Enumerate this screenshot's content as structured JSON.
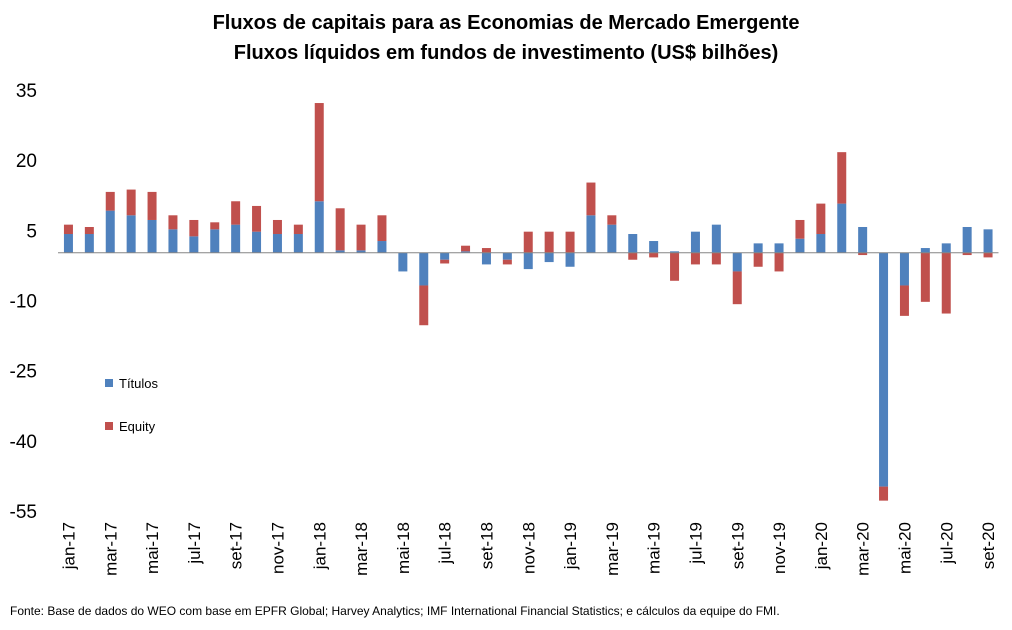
{
  "chart_data": {
    "type": "bar",
    "stacked": true,
    "title": "Fluxos de capitais para as Economias de Mercado Emergente",
    "subtitle": "Fluxos líquidos em fundos de investimento (US$ bilhões)",
    "ylim": [
      -55,
      35
    ],
    "yticks": [
      "35",
      "20",
      "5",
      "-10",
      "-25",
      "-40",
      "-55"
    ],
    "ytick_values": [
      35,
      20,
      5,
      -10,
      -25,
      -40,
      -55
    ],
    "xtick_labels": [
      "jan-17",
      "mar-17",
      "mai-17",
      "jul-17",
      "set-17",
      "nov-17",
      "jan-18",
      "mar-18",
      "mai-18",
      "jul-18",
      "set-18",
      "nov-18",
      "jan-19",
      "mar-19",
      "mai-19",
      "jul-19",
      "set-19",
      "nov-19",
      "jan-20",
      "mar-20",
      "mai-20",
      "jul-20",
      "set-20"
    ],
    "categories": [
      "jan-17",
      "fev-17",
      "mar-17",
      "abr-17",
      "mai-17",
      "jun-17",
      "jul-17",
      "ago-17",
      "set-17",
      "out-17",
      "nov-17",
      "dez-17",
      "jan-18",
      "fev-18",
      "mar-18",
      "abr-18",
      "mai-18",
      "jun-18",
      "jul-18",
      "ago-18",
      "set-18",
      "out-18",
      "nov-18",
      "dez-18",
      "jan-19",
      "fev-19",
      "mar-19",
      "abr-19",
      "mai-19",
      "jun-19",
      "jul-19",
      "ago-19",
      "set-19",
      "out-19",
      "nov-19",
      "dez-19",
      "jan-20",
      "fev-20",
      "mar-20",
      "abr-20",
      "mai-20",
      "jun-20",
      "jul-20",
      "ago-20",
      "set-20"
    ],
    "legend_position": "left",
    "grid": false,
    "series": [
      {
        "name": "Títulos",
        "color": "#4f81bd",
        "values": [
          4,
          4,
          9,
          8,
          7,
          5,
          3.5,
          5,
          6,
          4.5,
          4,
          4,
          11,
          0.5,
          0.5,
          2.5,
          -4,
          -7,
          -1.5,
          0.3,
          -2.5,
          -1.5,
          -3.5,
          -2,
          -3,
          8,
          6,
          4,
          2.5,
          0.3,
          4.5,
          6,
          -4,
          2,
          2,
          3,
          4,
          10.5,
          5.5,
          -50,
          -7,
          1,
          2,
          5.5,
          5
        ]
      },
      {
        "name": "Equity",
        "color": "#c0504d",
        "values": [
          2,
          1.5,
          4,
          5.5,
          6,
          3,
          3.5,
          1.5,
          5,
          5.5,
          3,
          2,
          21,
          9,
          5.5,
          5.5,
          0,
          -8.5,
          -0.8,
          1.2,
          1,
          -1,
          4.5,
          4.5,
          4.5,
          7,
          2,
          -1.5,
          -1,
          -6,
          -2.5,
          -2.5,
          -7,
          -3,
          -4,
          4,
          6.5,
          11,
          -0.5,
          -3,
          -6.5,
          -10.5,
          -13,
          -0.5,
          -1
        ]
      }
    ]
  },
  "source": "Fonte: Base de dados do WEO com base em EPFR Global; Harvey Analytics; IMF International Financial Statistics; e cálculos da equipe do FMI."
}
